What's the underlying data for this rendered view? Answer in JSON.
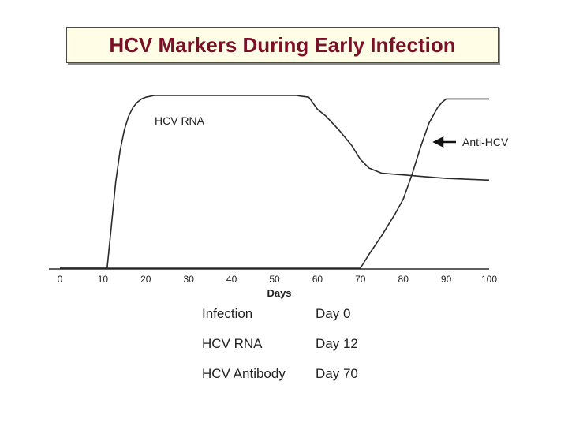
{
  "title": "HCV Markers During Early Infection",
  "colors": {
    "title_text": "#7a1028",
    "title_background": "#fffde6",
    "curve": "#2a2a2a"
  },
  "chart_data": {
    "type": "line",
    "title": "",
    "xlabel": "Days",
    "ylabel": "",
    "xlim": [
      0,
      100
    ],
    "x_ticks": [
      "0",
      "10",
      "20",
      "30",
      "40",
      "50",
      "60",
      "70",
      "80",
      "90",
      "100"
    ],
    "grid": false,
    "series": [
      {
        "name": "HCV RNA",
        "x": [
          0,
          11,
          12,
          13,
          14,
          15,
          16,
          17,
          18,
          19,
          20,
          22,
          25,
          30,
          40,
          50,
          55,
          58,
          60,
          62,
          65,
          68,
          70,
          72,
          75,
          80,
          85,
          90,
          95,
          100
        ],
        "y": [
          0,
          0,
          25,
          50,
          68,
          80,
          88,
          93,
          96,
          98,
          99,
          100,
          100,
          100,
          100,
          100,
          100,
          99,
          92,
          88,
          80,
          71,
          63,
          58,
          55,
          54,
          53,
          52,
          51.5,
          51
        ]
      },
      {
        "name": "Anti-HCV",
        "x": [
          0,
          70,
          72,
          75,
          78,
          80,
          82,
          84,
          86,
          88,
          89,
          90,
          95,
          100
        ],
        "y": [
          0,
          0,
          8,
          19,
          31,
          40,
          54,
          70,
          84,
          93,
          96,
          98,
          98,
          98
        ]
      }
    ],
    "annotations": [
      "HCV RNA",
      "Anti-HCV"
    ]
  },
  "summary_table": [
    {
      "label": "Infection",
      "value": "Day 0"
    },
    {
      "label": "HCV RNA",
      "value": "Day 12"
    },
    {
      "label": "HCV Antibody",
      "value": "Day 70"
    }
  ]
}
